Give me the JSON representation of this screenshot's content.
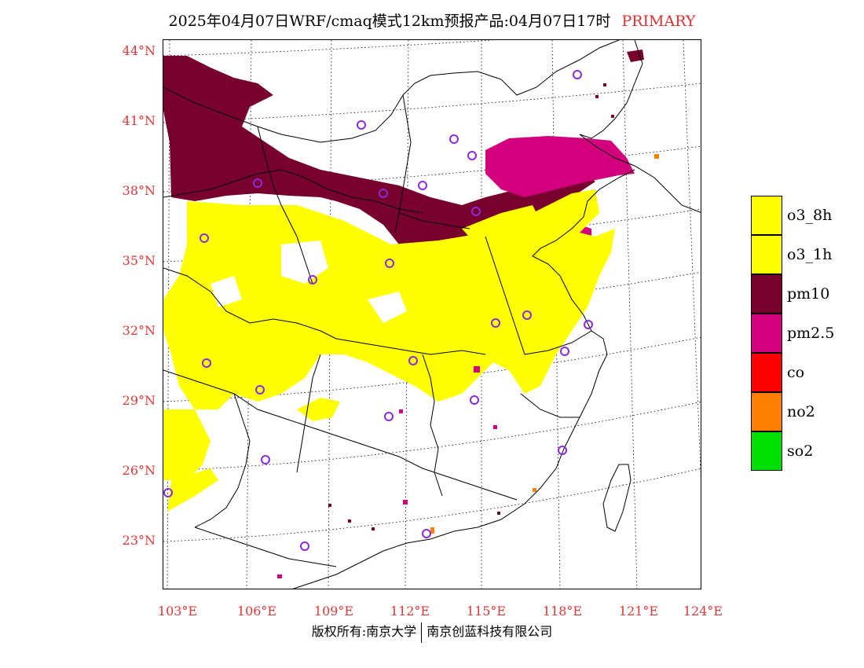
{
  "header": {
    "title": "2025年04月07日WRF/cmaq模式12km预报产品:04月07日17时",
    "tag": "PRIMARY"
  },
  "axes": {
    "lat_labels": [
      "44°N",
      "41°N",
      "38°N",
      "35°N",
      "32°N",
      "29°N",
      "26°N",
      "23°N"
    ],
    "lon_labels": [
      "103°E",
      "106°E",
      "109°E",
      "112°E",
      "115°E",
      "118°E",
      "121°E",
      "124°E"
    ]
  },
  "legend": {
    "items": [
      {
        "label": "o3_8h",
        "color": "#ffff00"
      },
      {
        "label": "o3_1h",
        "color": "#ffff00"
      },
      {
        "label": "pm10",
        "color": "#78002d"
      },
      {
        "label": "pm2.5",
        "color": "#d2007c"
      },
      {
        "label": "co",
        "color": "#ff0000"
      },
      {
        "label": "no2",
        "color": "#ff8000"
      },
      {
        "label": "so2",
        "color": "#00e000"
      }
    ]
  },
  "footer": {
    "left": "版权所有:南京大学",
    "right": "南京创蓝科技有限公司"
  }
}
